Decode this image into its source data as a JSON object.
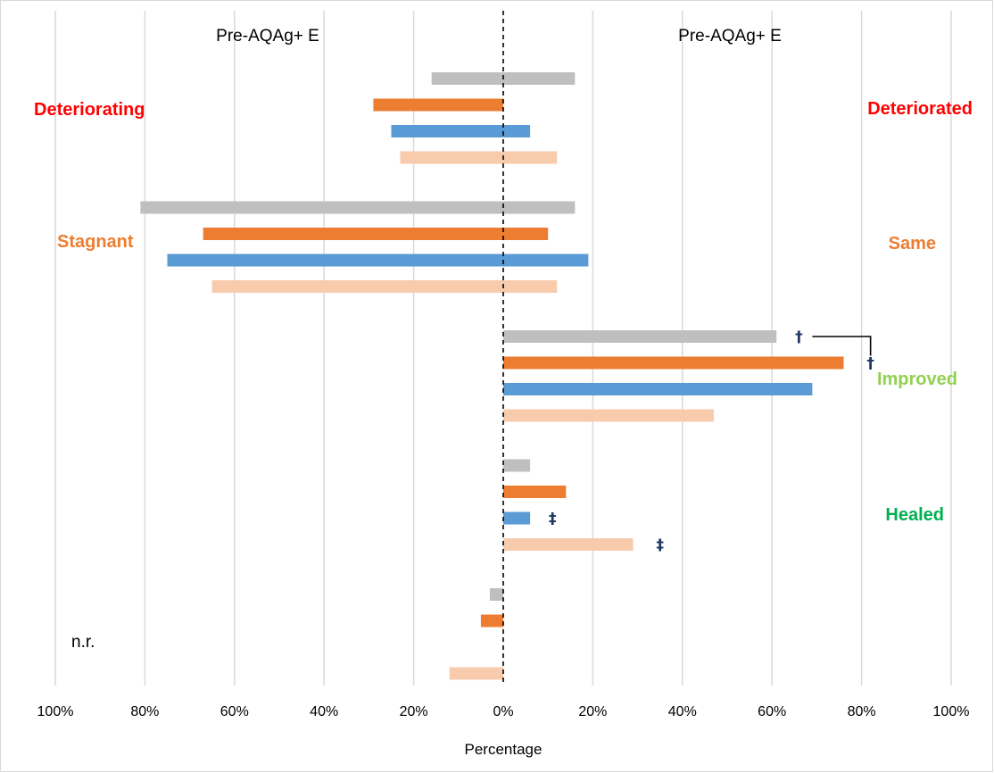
{
  "chart_data": {
    "type": "bar",
    "orientation": "horizontal",
    "diverging": true,
    "panel_titles": {
      "left": "Pre-AQAg+ E",
      "right": "Pre-AQAg+ E"
    },
    "xlabel": "Percentage",
    "xlim": [
      -100,
      100
    ],
    "xticks": [
      {
        "value": -100,
        "label": "100%"
      },
      {
        "value": -80,
        "label": "80%"
      },
      {
        "value": -60,
        "label": "60%"
      },
      {
        "value": -40,
        "label": "40%"
      },
      {
        "value": -20,
        "label": "20%"
      },
      {
        "value": 0,
        "label": "0%"
      },
      {
        "value": 20,
        "label": "20%"
      },
      {
        "value": 40,
        "label": "40%"
      },
      {
        "value": 60,
        "label": "60%"
      },
      {
        "value": 80,
        "label": "80%"
      },
      {
        "value": 100,
        "label": "100%"
      }
    ],
    "grid": true,
    "zero_line": "dashed",
    "series": [
      {
        "color": "#bfbfbf"
      },
      {
        "color": "#ed7d31"
      },
      {
        "color": "#5b9bd5"
      },
      {
        "color": "#f8cbad"
      }
    ],
    "groups": [
      {
        "left_label": "Deteriorating",
        "left_color": "#ff0000",
        "right_label": "Deteriorated",
        "right_color": "#ff0000",
        "left_values": [
          16,
          29,
          25,
          23
        ],
        "right_values": [
          16,
          null,
          6,
          12
        ]
      },
      {
        "left_label": "Stagnant",
        "left_color": "#ed7d31",
        "right_label": "Same",
        "right_color": "#ed7d31",
        "left_values": [
          81,
          67,
          75,
          65
        ],
        "right_values": [
          16,
          10,
          19,
          12
        ]
      },
      {
        "left_label": "",
        "left_color": "#000000",
        "right_label": "Improved",
        "right_color": "#92d050",
        "left_values": [
          null,
          null,
          null,
          null
        ],
        "right_values": [
          61,
          76,
          69,
          47
        ]
      },
      {
        "left_label": "",
        "left_color": "#000000",
        "right_label": "Healed",
        "right_color": "#00b050",
        "left_values": [
          null,
          null,
          null,
          null
        ],
        "right_values": [
          6,
          14,
          6,
          29
        ]
      },
      {
        "left_label": "n.r.",
        "left_color": "#000000",
        "right_label": "",
        "right_color": "#000000",
        "left_values": [
          3,
          5,
          null,
          12
        ],
        "right_values": [
          null,
          null,
          null,
          null
        ]
      }
    ],
    "annotations": [
      {
        "text": "†",
        "group": 2,
        "series": 0,
        "x": 66
      },
      {
        "text": "†",
        "group": 2,
        "series": 1,
        "x": 82
      },
      {
        "text": "‡",
        "group": 3,
        "series": 2,
        "x": 11
      },
      {
        "text": "‡",
        "group": 3,
        "series": 3,
        "x": 35
      }
    ],
    "brackets": [
      {
        "from_series": 0,
        "to_series": 1,
        "group": 2,
        "x_start": 69,
        "x_end": 82
      }
    ]
  }
}
